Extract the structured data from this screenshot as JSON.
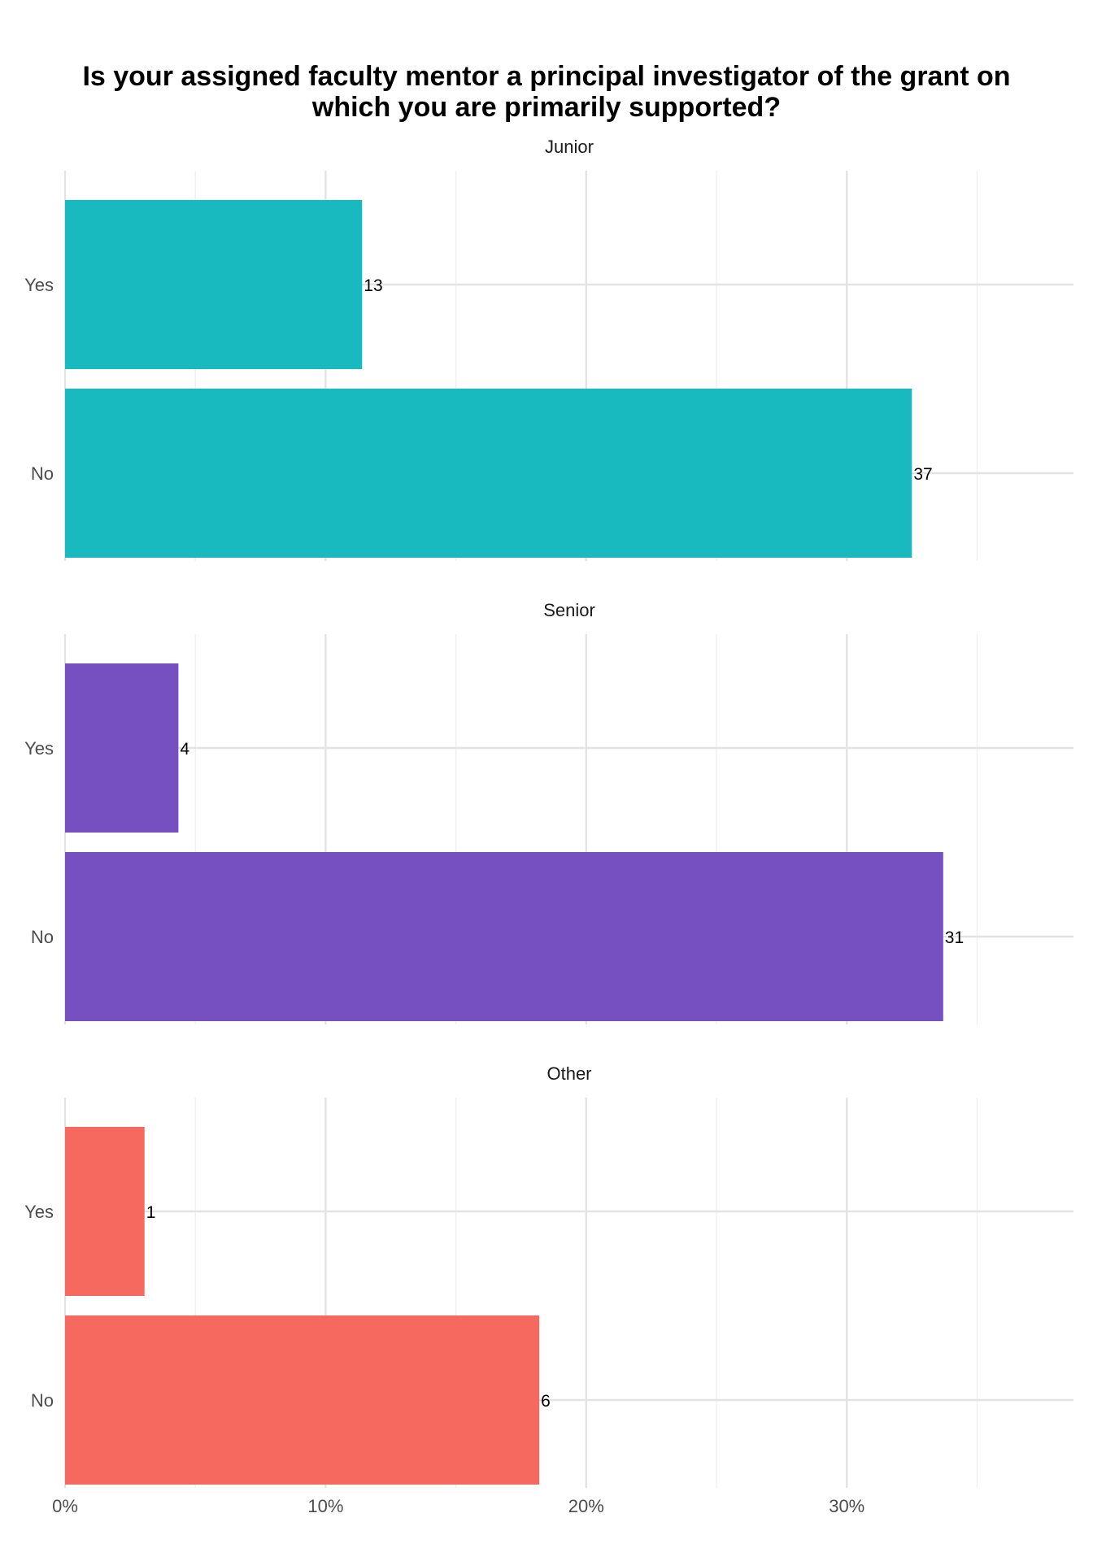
{
  "chart_data": {
    "type": "bar",
    "orientation": "horizontal",
    "title_lines": [
      "Is your assigned faculty mentor a principal investigator of the grant on",
      "which you are primarily supported?"
    ],
    "xlim": [
      0,
      38.7
    ],
    "x_ticks": [
      0,
      10,
      20,
      30
    ],
    "x_tick_labels": [
      "0%",
      "10%",
      "20%",
      "30%"
    ],
    "grid": true,
    "legend": "none",
    "panels": [
      {
        "name": "Junior",
        "color": "#19BABF",
        "categories": [
          "Yes",
          "No"
        ],
        "percent": [
          11.4,
          32.5
        ],
        "counts": [
          "13",
          "37"
        ]
      },
      {
        "name": "Senior",
        "color": "#7650C0",
        "categories": [
          "Yes",
          "No"
        ],
        "percent": [
          4.35,
          33.7
        ],
        "counts": [
          "4",
          "31"
        ]
      },
      {
        "name": "Other",
        "color": "#F5695F",
        "categories": [
          "Yes",
          "No"
        ],
        "percent": [
          3.05,
          18.2
        ],
        "counts": [
          "1",
          "6"
        ]
      }
    ]
  }
}
